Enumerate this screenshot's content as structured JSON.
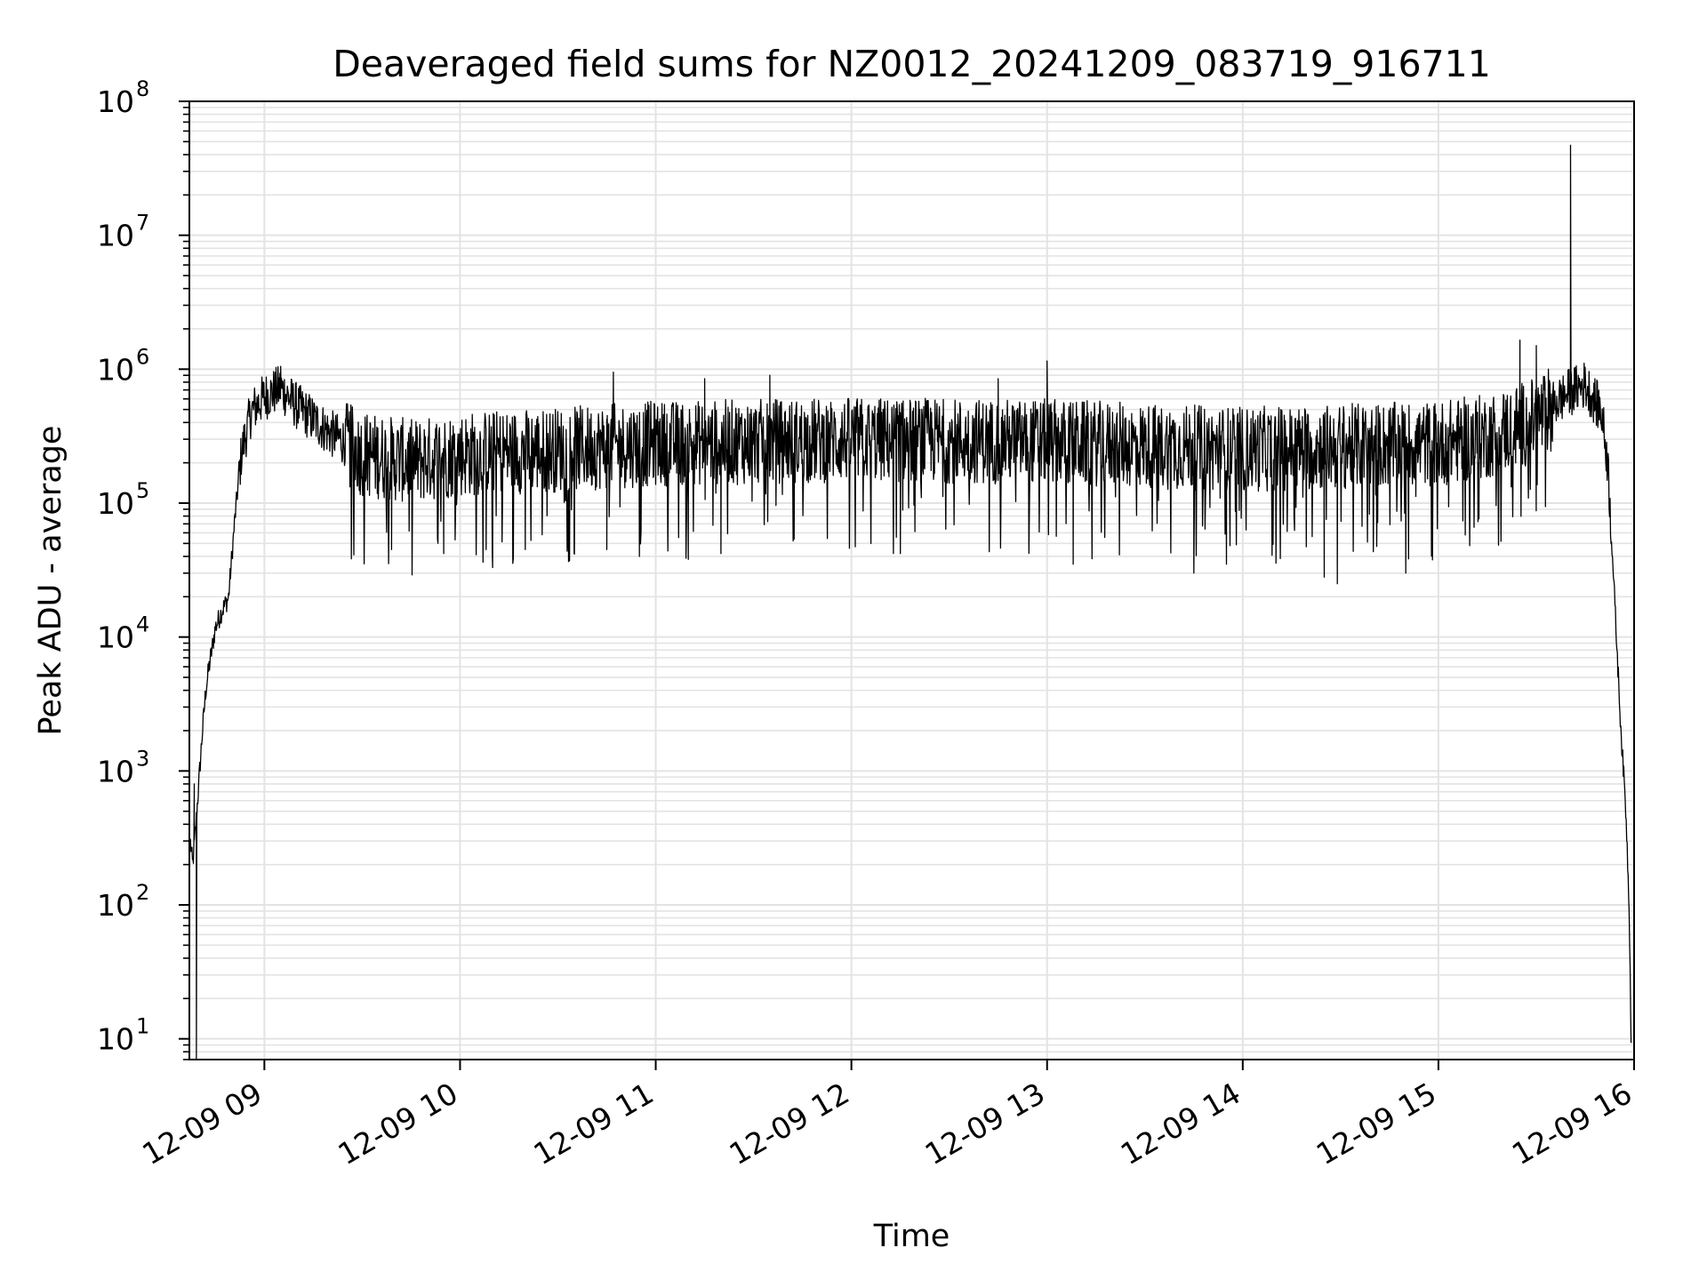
{
  "chart_data": {
    "type": "line",
    "title": "Deaveraged field sums for NZ0012_20241209_083719_916711",
    "xlabel": "Time",
    "ylabel": "Peak ADU - average",
    "yscale": "log",
    "xlim": [
      "2024-12-09 08:37",
      "2024-12-09 16:00"
    ],
    "ylim": [
      7,
      100000000
    ],
    "grid": true,
    "grid_color": "#e3e3e3",
    "line_color": "#000000",
    "x_ticks": [
      {
        "t": "2024-12-09 09:00",
        "label": "12-09 09"
      },
      {
        "t": "2024-12-09 10:00",
        "label": "12-09 10"
      },
      {
        "t": "2024-12-09 11:00",
        "label": "12-09 11"
      },
      {
        "t": "2024-12-09 12:00",
        "label": "12-09 12"
      },
      {
        "t": "2024-12-09 13:00",
        "label": "12-09 13"
      },
      {
        "t": "2024-12-09 14:00",
        "label": "12-09 14"
      },
      {
        "t": "2024-12-09 15:00",
        "label": "12-09 15"
      },
      {
        "t": "2024-12-09 16:00",
        "label": "12-09 16"
      }
    ],
    "y_ticks": [
      {
        "value": 10,
        "base": "10",
        "exp": "1"
      },
      {
        "value": 100,
        "base": "10",
        "exp": "2"
      },
      {
        "value": 1000,
        "base": "10",
        "exp": "3"
      },
      {
        "value": 10000,
        "base": "10",
        "exp": "4"
      },
      {
        "value": 100000,
        "base": "10",
        "exp": "5"
      },
      {
        "value": 1000000,
        "base": "10",
        "exp": "6"
      },
      {
        "value": 10000000,
        "base": "10",
        "exp": "7"
      },
      {
        "value": 100000000,
        "base": "10",
        "exp": "8"
      }
    ],
    "series": [
      {
        "envelope": [
          [
            "2024-12-09 08:37:20",
            300
          ],
          [
            "2024-12-09 08:38:00",
            200
          ],
          [
            "2024-12-09 08:39:00",
            400
          ],
          [
            "2024-12-09 08:40:00",
            900
          ],
          [
            "2024-12-09 08:41:00",
            2000
          ],
          [
            "2024-12-09 08:42:00",
            4000
          ],
          [
            "2024-12-09 08:43:00",
            6000
          ],
          [
            "2024-12-09 08:45:00",
            12000
          ],
          [
            "2024-12-09 08:47:00",
            16000
          ],
          [
            "2024-12-09 08:49:00",
            20000
          ],
          [
            "2024-12-09 08:51:00",
            80000
          ],
          [
            "2024-12-09 08:53:00",
            250000
          ],
          [
            "2024-12-09 08:56:00",
            500000
          ],
          [
            "2024-12-09 09:00:00",
            650000
          ],
          [
            "2024-12-09 09:05:00",
            750000
          ],
          [
            "2024-12-09 09:10:00",
            550000
          ],
          [
            "2024-12-09 09:20:00",
            350000
          ],
          [
            "2024-12-09 09:30:00",
            250000
          ],
          [
            "2024-12-09 09:45:00",
            220000
          ],
          [
            "2024-12-09 10:00:00",
            250000
          ],
          [
            "2024-12-09 10:30:00",
            270000
          ],
          [
            "2024-12-09 11:00:00",
            300000
          ],
          [
            "2024-12-09 12:00:00",
            320000
          ],
          [
            "2024-12-09 13:00:00",
            310000
          ],
          [
            "2024-12-09 14:00:00",
            270000
          ],
          [
            "2024-12-09 15:00:00",
            300000
          ],
          [
            "2024-12-09 15:15:00",
            340000
          ],
          [
            "2024-12-09 15:30:00",
            450000
          ],
          [
            "2024-12-09 15:40:00",
            700000
          ],
          [
            "2024-12-09 15:45:00",
            800000
          ],
          [
            "2024-12-09 15:50:00",
            500000
          ],
          [
            "2024-12-09 15:52:00",
            200000
          ],
          [
            "2024-12-09 15:54:00",
            20000
          ],
          [
            "2024-12-09 15:56:00",
            2000
          ],
          [
            "2024-12-09 15:57:30",
            500
          ],
          [
            "2024-12-09 15:58:30",
            100
          ],
          [
            "2024-12-09 15:59:10",
            8
          ]
        ],
        "spikes": [
          [
            "2024-12-09 08:38:30",
            800
          ],
          [
            "2024-12-09 08:39:10",
            7
          ],
          [
            "2024-12-09 09:05:00",
            1050000
          ],
          [
            "2024-12-09 09:39:00",
            45000
          ],
          [
            "2024-12-09 09:55:00",
            42000
          ],
          [
            "2024-12-09 10:08:00",
            45000
          ],
          [
            "2024-12-09 10:10:00",
            33000
          ],
          [
            "2024-12-09 10:20:00",
            45000
          ],
          [
            "2024-12-09 10:35:00",
            42000
          ],
          [
            "2024-12-09 10:45:00",
            45000
          ],
          [
            "2024-12-09 10:47:00",
            950000
          ],
          [
            "2024-12-09 10:55:00",
            40000
          ],
          [
            "2024-12-09 11:10:00",
            38000
          ],
          [
            "2024-12-09 11:15:00",
            850000
          ],
          [
            "2024-12-09 11:20:00",
            42000
          ],
          [
            "2024-12-09 11:35:00",
            900000
          ],
          [
            "2024-12-09 12:15:00",
            42000
          ],
          [
            "2024-12-09 12:45:00",
            850000
          ],
          [
            "2024-12-09 13:00:00",
            1150000
          ],
          [
            "2024-12-09 13:08:00",
            35000
          ],
          [
            "2024-12-09 13:45:00",
            30000
          ],
          [
            "2024-12-09 13:55:00",
            35000
          ],
          [
            "2024-12-09 14:25:00",
            28000
          ],
          [
            "2024-12-09 14:29:00",
            25000
          ],
          [
            "2024-12-09 14:50:00",
            30000
          ],
          [
            "2024-12-09 15:25:00",
            1650000
          ],
          [
            "2024-12-09 15:30:00",
            1500000
          ],
          [
            "2024-12-09 15:40:30",
            47000000
          ]
        ]
      }
    ]
  }
}
